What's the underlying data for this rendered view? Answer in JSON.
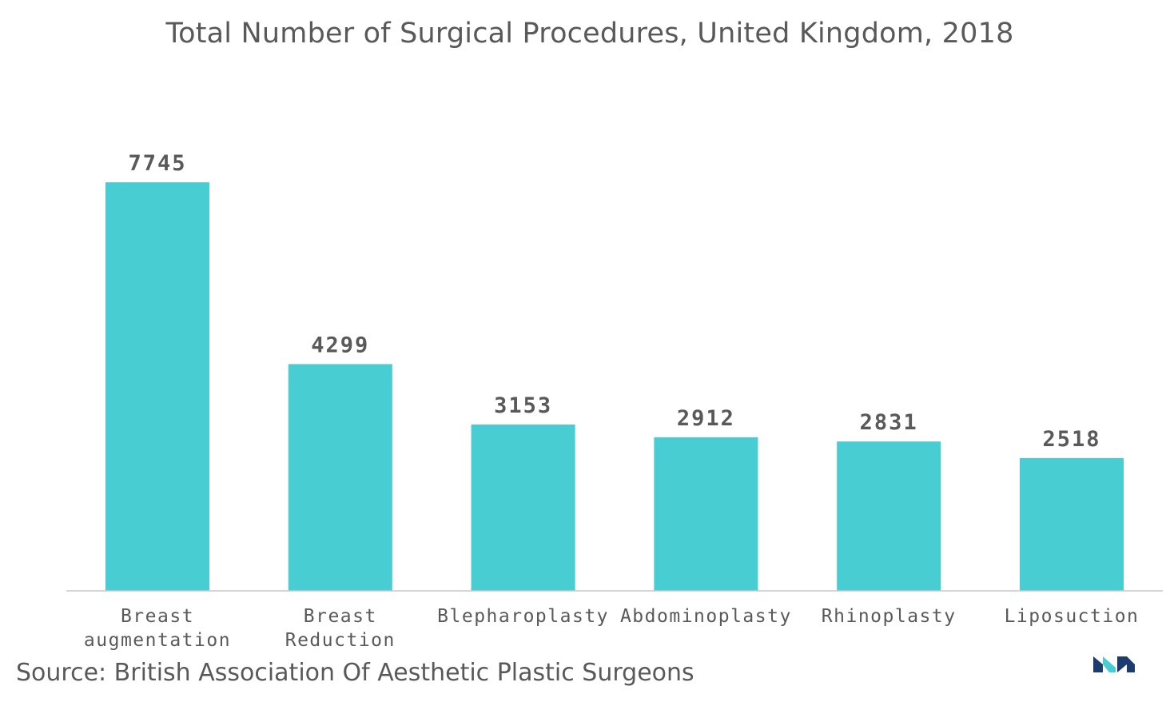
{
  "chart_data": {
    "type": "bar",
    "title": "Total Number of Surgical Procedures, United Kingdom, 2018",
    "categories": [
      [
        "Breast",
        "augmentation"
      ],
      [
        "Breast",
        "Reduction"
      ],
      [
        "Blepharoplasty"
      ],
      [
        "Abdominoplasty"
      ],
      [
        "Rhinoplasty"
      ],
      [
        "Liposuction"
      ]
    ],
    "values": [
      7745,
      4299,
      3153,
      2912,
      2831,
      2518
    ],
    "data_labels": [
      "7745",
      "4299",
      "3153",
      "2912",
      "2831",
      "2518"
    ],
    "xlabel": "",
    "ylabel": "",
    "ylim": [
      0,
      7745
    ],
    "grid": false,
    "legend": "none",
    "bar_color": "#47cdd2",
    "axis_color": "#c8c8c8",
    "text_color": "#595959"
  },
  "source": "Source: British Association Of Aesthetic Plastic Surgeons",
  "logo": {
    "icon": "brand-logo-icon",
    "colors": [
      "#1d3c6e",
      "#47cdd2"
    ]
  }
}
